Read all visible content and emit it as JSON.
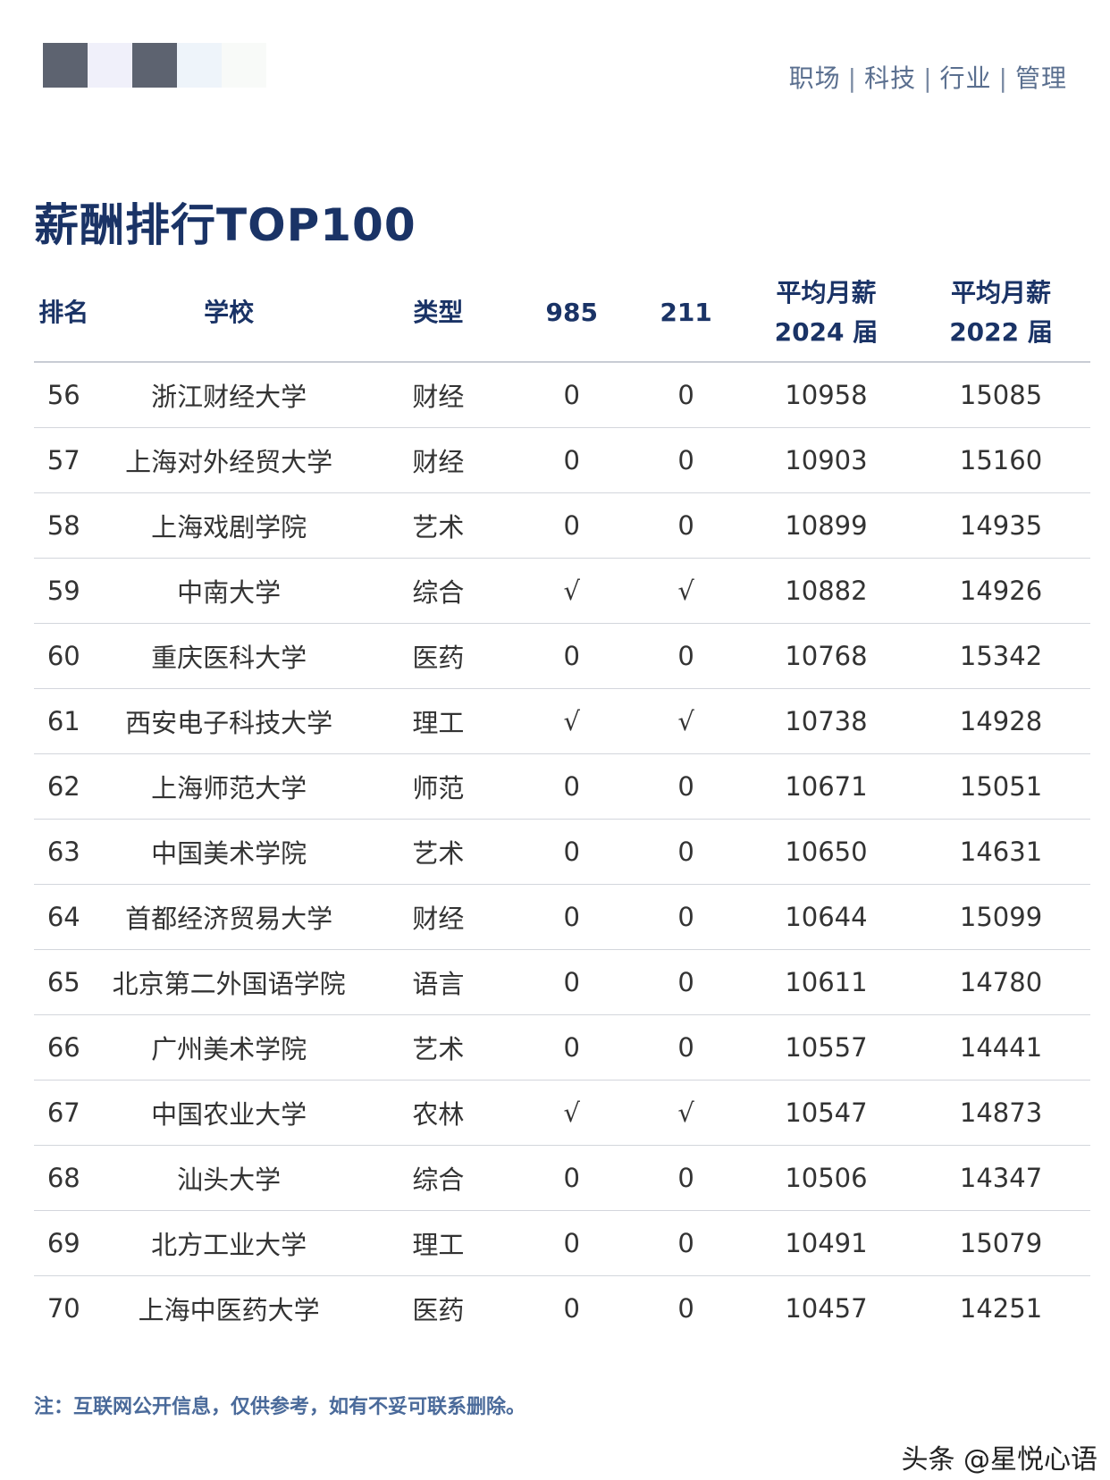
{
  "header": {
    "logo_colors": [
      "#5d6370",
      "#f0f0fa",
      "#5d6370",
      "#eef4fa",
      "#f8faf8"
    ],
    "nav": [
      "职场",
      "科技",
      "行业",
      "管理"
    ],
    "nav_separator": "|"
  },
  "title": "薪酬排行TOP100",
  "table": {
    "headers": {
      "rank": "排名",
      "school": "学校",
      "type": "类型",
      "c985": "985",
      "c211": "211",
      "salary2024_l1": "平均月薪",
      "salary2024_l2": "2024 届",
      "salary2022_l1": "平均月薪",
      "salary2022_l2": "2022 届"
    },
    "rows": [
      {
        "rank": "56",
        "school": "浙江财经大学",
        "type": "财经",
        "c985": "0",
        "c211": "0",
        "s2024": "10958",
        "s2022": "15085"
      },
      {
        "rank": "57",
        "school": "上海对外经贸大学",
        "type": "财经",
        "c985": "0",
        "c211": "0",
        "s2024": "10903",
        "s2022": "15160"
      },
      {
        "rank": "58",
        "school": "上海戏剧学院",
        "type": "艺术",
        "c985": "0",
        "c211": "0",
        "s2024": "10899",
        "s2022": "14935"
      },
      {
        "rank": "59",
        "school": "中南大学",
        "type": "综合",
        "c985": "√",
        "c211": "√",
        "s2024": "10882",
        "s2022": "14926"
      },
      {
        "rank": "60",
        "school": "重庆医科大学",
        "type": "医药",
        "c985": "0",
        "c211": "0",
        "s2024": "10768",
        "s2022": "15342"
      },
      {
        "rank": "61",
        "school": "西安电子科技大学",
        "type": "理工",
        "c985": "√",
        "c211": "√",
        "s2024": "10738",
        "s2022": "14928"
      },
      {
        "rank": "62",
        "school": "上海师范大学",
        "type": "师范",
        "c985": "0",
        "c211": "0",
        "s2024": "10671",
        "s2022": "15051"
      },
      {
        "rank": "63",
        "school": "中国美术学院",
        "type": "艺术",
        "c985": "0",
        "c211": "0",
        "s2024": "10650",
        "s2022": "14631"
      },
      {
        "rank": "64",
        "school": "首都经济贸易大学",
        "type": "财经",
        "c985": "0",
        "c211": "0",
        "s2024": "10644",
        "s2022": "15099"
      },
      {
        "rank": "65",
        "school": "北京第二外国语学院",
        "type": "语言",
        "c985": "0",
        "c211": "0",
        "s2024": "10611",
        "s2022": "14780"
      },
      {
        "rank": "66",
        "school": "广州美术学院",
        "type": "艺术",
        "c985": "0",
        "c211": "0",
        "s2024": "10557",
        "s2022": "14441"
      },
      {
        "rank": "67",
        "school": "中国农业大学",
        "type": "农林",
        "c985": "√",
        "c211": "√",
        "s2024": "10547",
        "s2022": "14873"
      },
      {
        "rank": "68",
        "school": "汕头大学",
        "type": "综合",
        "c985": "0",
        "c211": "0",
        "s2024": "10506",
        "s2022": "14347"
      },
      {
        "rank": "69",
        "school": "北方工业大学",
        "type": "理工",
        "c985": "0",
        "c211": "0",
        "s2024": "10491",
        "s2022": "15079"
      },
      {
        "rank": "70",
        "school": "上海中医药大学",
        "type": "医药",
        "c985": "0",
        "c211": "0",
        "s2024": "10457",
        "s2022": "14251"
      }
    ]
  },
  "note": "注：互联网公开信息，仅供参考，如有不妥可联系删除。",
  "watermark": "头条 @星悦心语"
}
